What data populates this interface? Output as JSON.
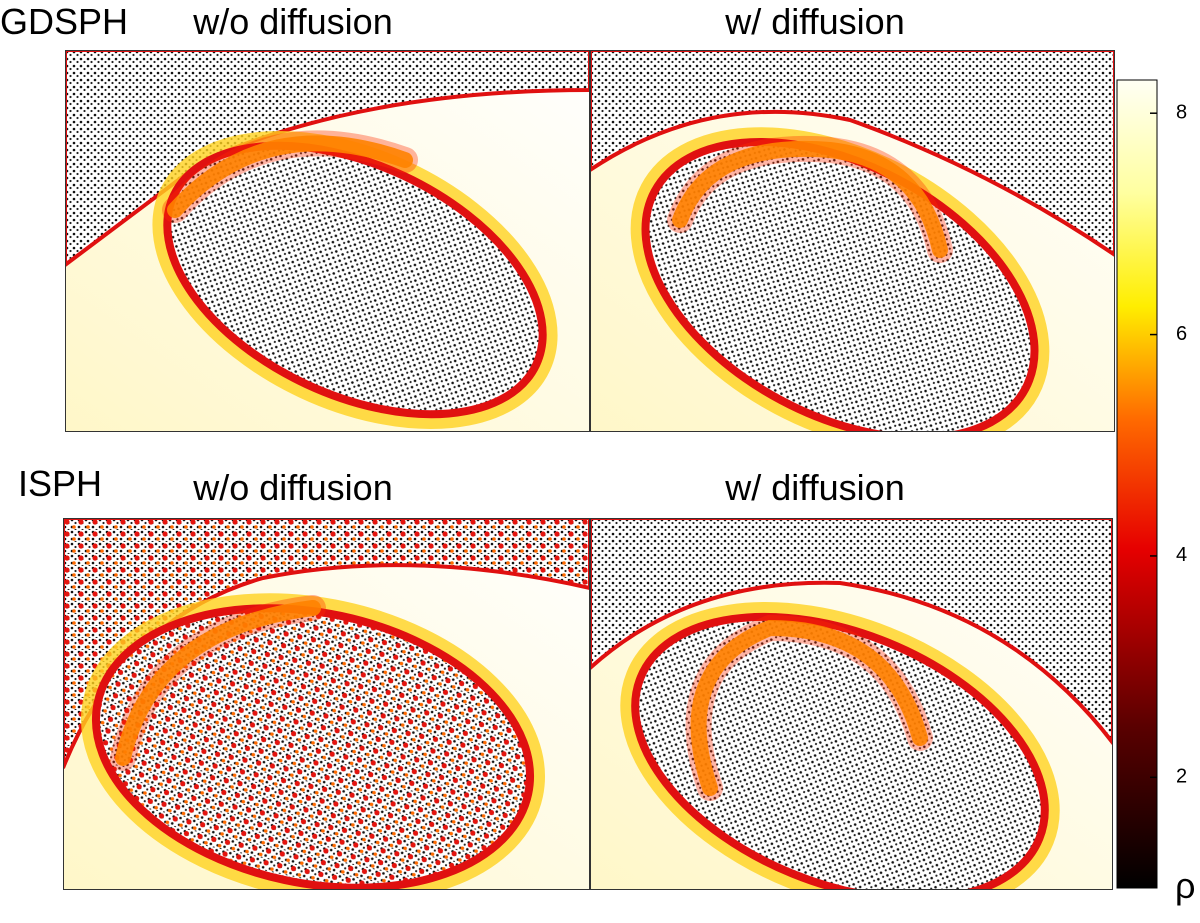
{
  "rows": [
    {
      "label": "GDSPH",
      "panels": [
        "w/o diffusion",
        "w/ diffusion"
      ]
    },
    {
      "label": "ISPH",
      "panels": [
        "w/o diffusion",
        "w/ diffusion"
      ]
    }
  ],
  "colorbar": {
    "label": "ρ",
    "lim": [
      1,
      8.3
    ],
    "ticks": [
      2,
      4,
      6,
      8
    ]
  }
}
